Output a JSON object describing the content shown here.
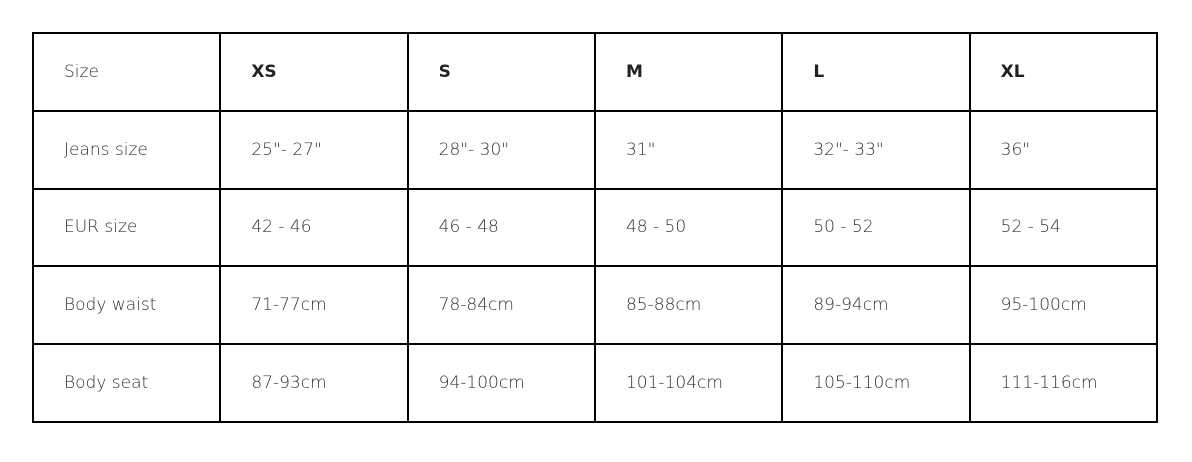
{
  "table": {
    "header": [
      "Size",
      "XS",
      "S",
      "M",
      "L",
      "XL"
    ],
    "rows": [
      [
        "Jeans size",
        "25\"- 27\"",
        "28\"- 30\"",
        "31\"",
        "32\"- 33\"",
        "36\""
      ],
      [
        "EUR size",
        "42 - 46",
        "46 - 48",
        "48 - 50",
        "50 - 52",
        "52 - 54"
      ],
      [
        "Body waist",
        "71-77cm",
        "78-84cm",
        "85-88cm",
        "89-94cm",
        "95-100cm"
      ],
      [
        "Body seat",
        "87-93cm",
        "94-100cm",
        "101-104cm",
        "105-110cm",
        "111-116cm"
      ]
    ]
  }
}
